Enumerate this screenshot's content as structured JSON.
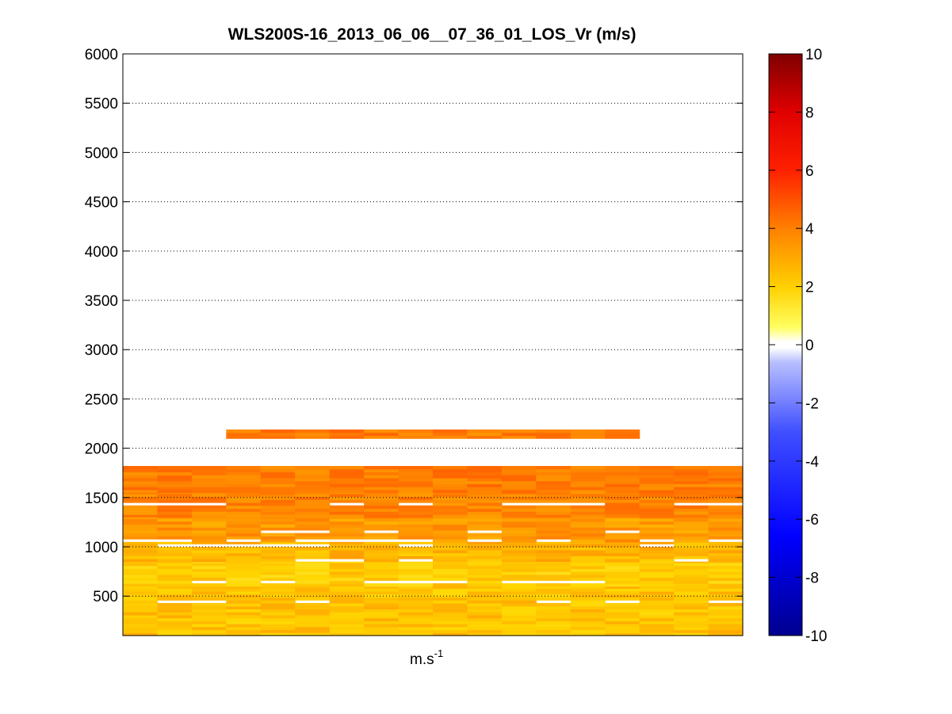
{
  "chart_data": {
    "type": "heatmap",
    "title": "WLS200S-16_2013_06_06__07_36_01_LOS_Vr (m/s)",
    "xlabel": "m.s",
    "xlabel_superscript": "-1",
    "ylabel": "",
    "ylim": [
      100,
      6000
    ],
    "yticks": [
      500,
      1000,
      1500,
      2000,
      2500,
      3000,
      3500,
      4000,
      4500,
      5000,
      5500,
      6000
    ],
    "grid": "horizontal dotted",
    "columns": 18,
    "colorbar": {
      "range": [
        -10,
        10
      ],
      "ticks": [
        -10,
        -8,
        -6,
        -4,
        -2,
        0,
        2,
        4,
        6,
        8,
        10
      ],
      "colormap": "blue-white-yellow-red",
      "placement": "right"
    },
    "altitude_bands": [
      {
        "from": 100,
        "to": 600,
        "value": 1.5
      },
      {
        "from": 600,
        "to": 850,
        "value": 1.3
      },
      {
        "from": 850,
        "to": 1050,
        "value": 1.8
      },
      {
        "from": 1050,
        "to": 1300,
        "value": 2.5
      },
      {
        "from": 1300,
        "to": 1550,
        "value": 3.0
      },
      {
        "from": 1550,
        "to": 1820,
        "value": 3.2
      },
      {
        "from": 2100,
        "to": 2190,
        "value": 3.2
      }
    ],
    "data_gaps_m": [
      420,
      640,
      860,
      990,
      1050,
      1150,
      1430
    ]
  }
}
